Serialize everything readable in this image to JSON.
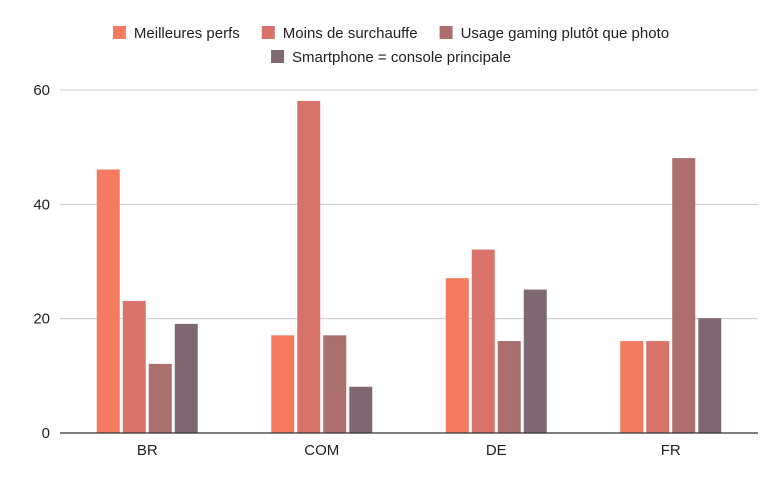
{
  "chart_data": {
    "type": "bar",
    "categories": [
      "BR",
      "COM",
      "DE",
      "FR"
    ],
    "series": [
      {
        "name": "Meilleures perfs",
        "color": "#f47a60",
        "values": [
          46,
          17,
          27,
          16
        ]
      },
      {
        "name": "Moins de surchauffe",
        "color": "#d9736a",
        "values": [
          23,
          58,
          32,
          16
        ]
      },
      {
        "name": "Usage gaming plutôt que photo",
        "color": "#ab6f6e",
        "values": [
          12,
          17,
          16,
          48
        ]
      },
      {
        "name": "Smartphone = console principale",
        "color": "#806872",
        "values": [
          19,
          8,
          25,
          20
        ]
      }
    ],
    "yticks": [
      "0",
      "20",
      "40",
      "60"
    ],
    "ylim": [
      0,
      60
    ],
    "grid": true,
    "legend_position": "top-center",
    "title": "",
    "xlabel": "",
    "ylabel": ""
  }
}
